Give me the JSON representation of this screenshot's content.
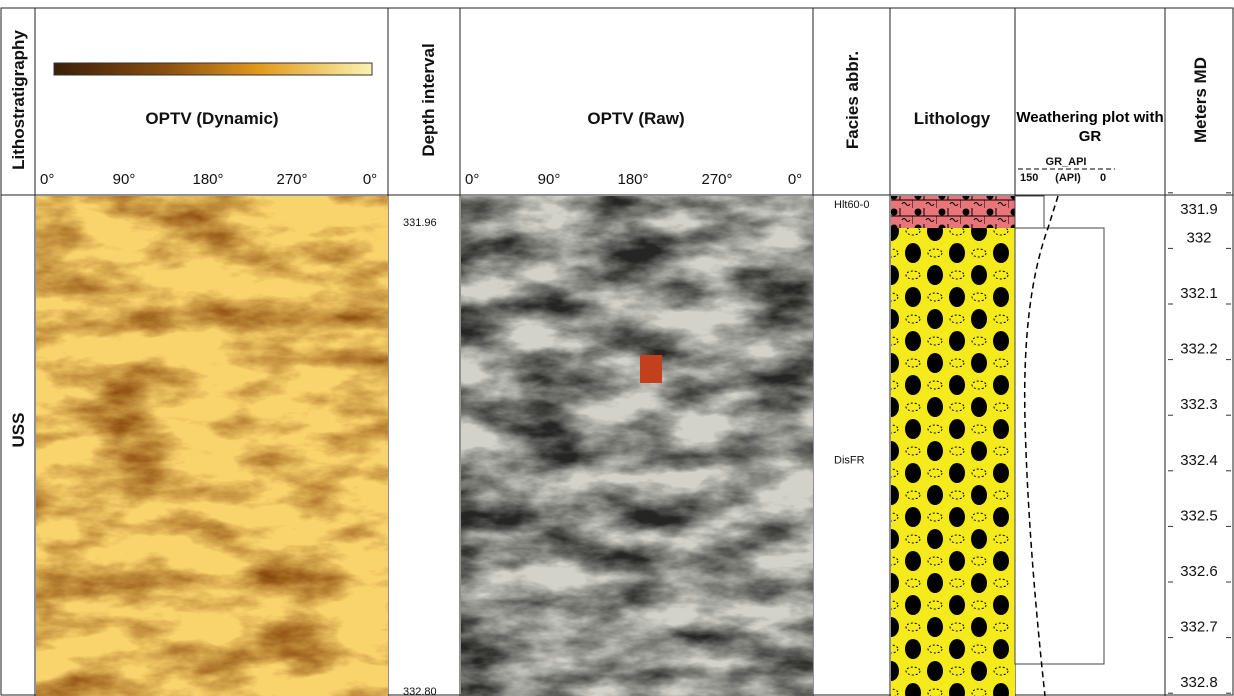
{
  "lithostratigraphy": {
    "header": "Lithostratigraphy",
    "unit": "USS"
  },
  "optv_dynamic": {
    "title": "OPTV (Dynamic)",
    "azimuth_ticks": [
      "0°",
      "90°",
      "180°",
      "270°",
      "0°"
    ]
  },
  "depth_interval": {
    "header": "Depth interval",
    "values": [
      {
        "value": 331.96,
        "label": "331.96"
      },
      {
        "value": 332.8,
        "label": "332.80"
      }
    ]
  },
  "optv_raw": {
    "title": "OPTV (Raw)",
    "azimuth_ticks": [
      "0°",
      "90°",
      "180°",
      "270°",
      "0°"
    ]
  },
  "facies": {
    "header": "Facies abbr.",
    "entries": [
      {
        "label": "Hlt60-0",
        "depth": 331.92
      },
      {
        "label": "DisFR",
        "depth": 332.38
      }
    ]
  },
  "lithology": {
    "header": "Lithology"
  },
  "weathering": {
    "header": "Weathering plot with GR",
    "curve_name": "GR_API",
    "unit": "(API)",
    "scale_left": "150",
    "scale_right": "0"
  },
  "meters_md": {
    "header": "Meters MD",
    "ticks": [
      331.9,
      332,
      332.1,
      332.2,
      332.3,
      332.4,
      332.5,
      332.6,
      332.7,
      332.8
    ]
  }
}
